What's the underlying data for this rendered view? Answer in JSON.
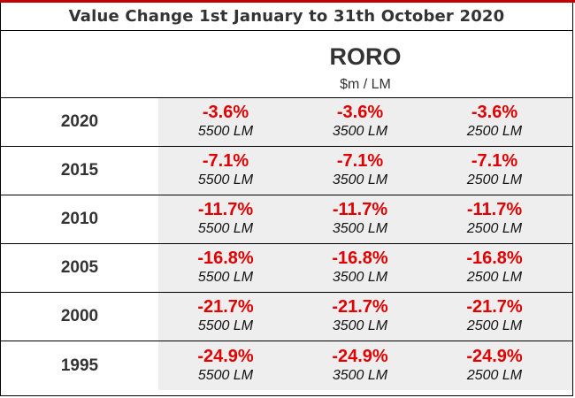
{
  "title": "Value Change 1st January to 31th October 2020",
  "header": {
    "vessel_type": "RORO",
    "unit": "$m / LM"
  },
  "rows": [
    {
      "year": "2020",
      "cells": [
        {
          "pct": "-3.6%",
          "size": "5500 LM"
        },
        {
          "pct": "-3.6%",
          "size": "3500 LM"
        },
        {
          "pct": "-3.6%",
          "size": "2500 LM"
        }
      ]
    },
    {
      "year": "2015",
      "cells": [
        {
          "pct": "-7.1%",
          "size": "5500 LM"
        },
        {
          "pct": "-7.1%",
          "size": "3500 LM"
        },
        {
          "pct": "-7.1%",
          "size": "2500 LM"
        }
      ]
    },
    {
      "year": "2010",
      "cells": [
        {
          "pct": "-11.7%",
          "size": "5500 LM"
        },
        {
          "pct": "-11.7%",
          "size": "3500 LM"
        },
        {
          "pct": "-11.7%",
          "size": "2500 LM"
        }
      ]
    },
    {
      "year": "2005",
      "cells": [
        {
          "pct": "-16.8%",
          "size": "5500 LM"
        },
        {
          "pct": "-16.8%",
          "size": "3500 LM"
        },
        {
          "pct": "-16.8%",
          "size": "2500 LM"
        }
      ]
    },
    {
      "year": "2000",
      "cells": [
        {
          "pct": "-21.7%",
          "size": "5500 LM"
        },
        {
          "pct": "-21.7%",
          "size": "3500 LM"
        },
        {
          "pct": "-21.7%",
          "size": "2500 LM"
        }
      ]
    },
    {
      "year": "1995",
      "cells": [
        {
          "pct": "-24.9%",
          "size": "5500 LM"
        },
        {
          "pct": "-24.9%",
          "size": "3500 LM"
        },
        {
          "pct": "-24.9%",
          "size": "2500 LM"
        }
      ]
    }
  ],
  "colors": {
    "negative": "#e00000",
    "cell_background": "#eeeeee",
    "accent_bar": "#c00000"
  }
}
